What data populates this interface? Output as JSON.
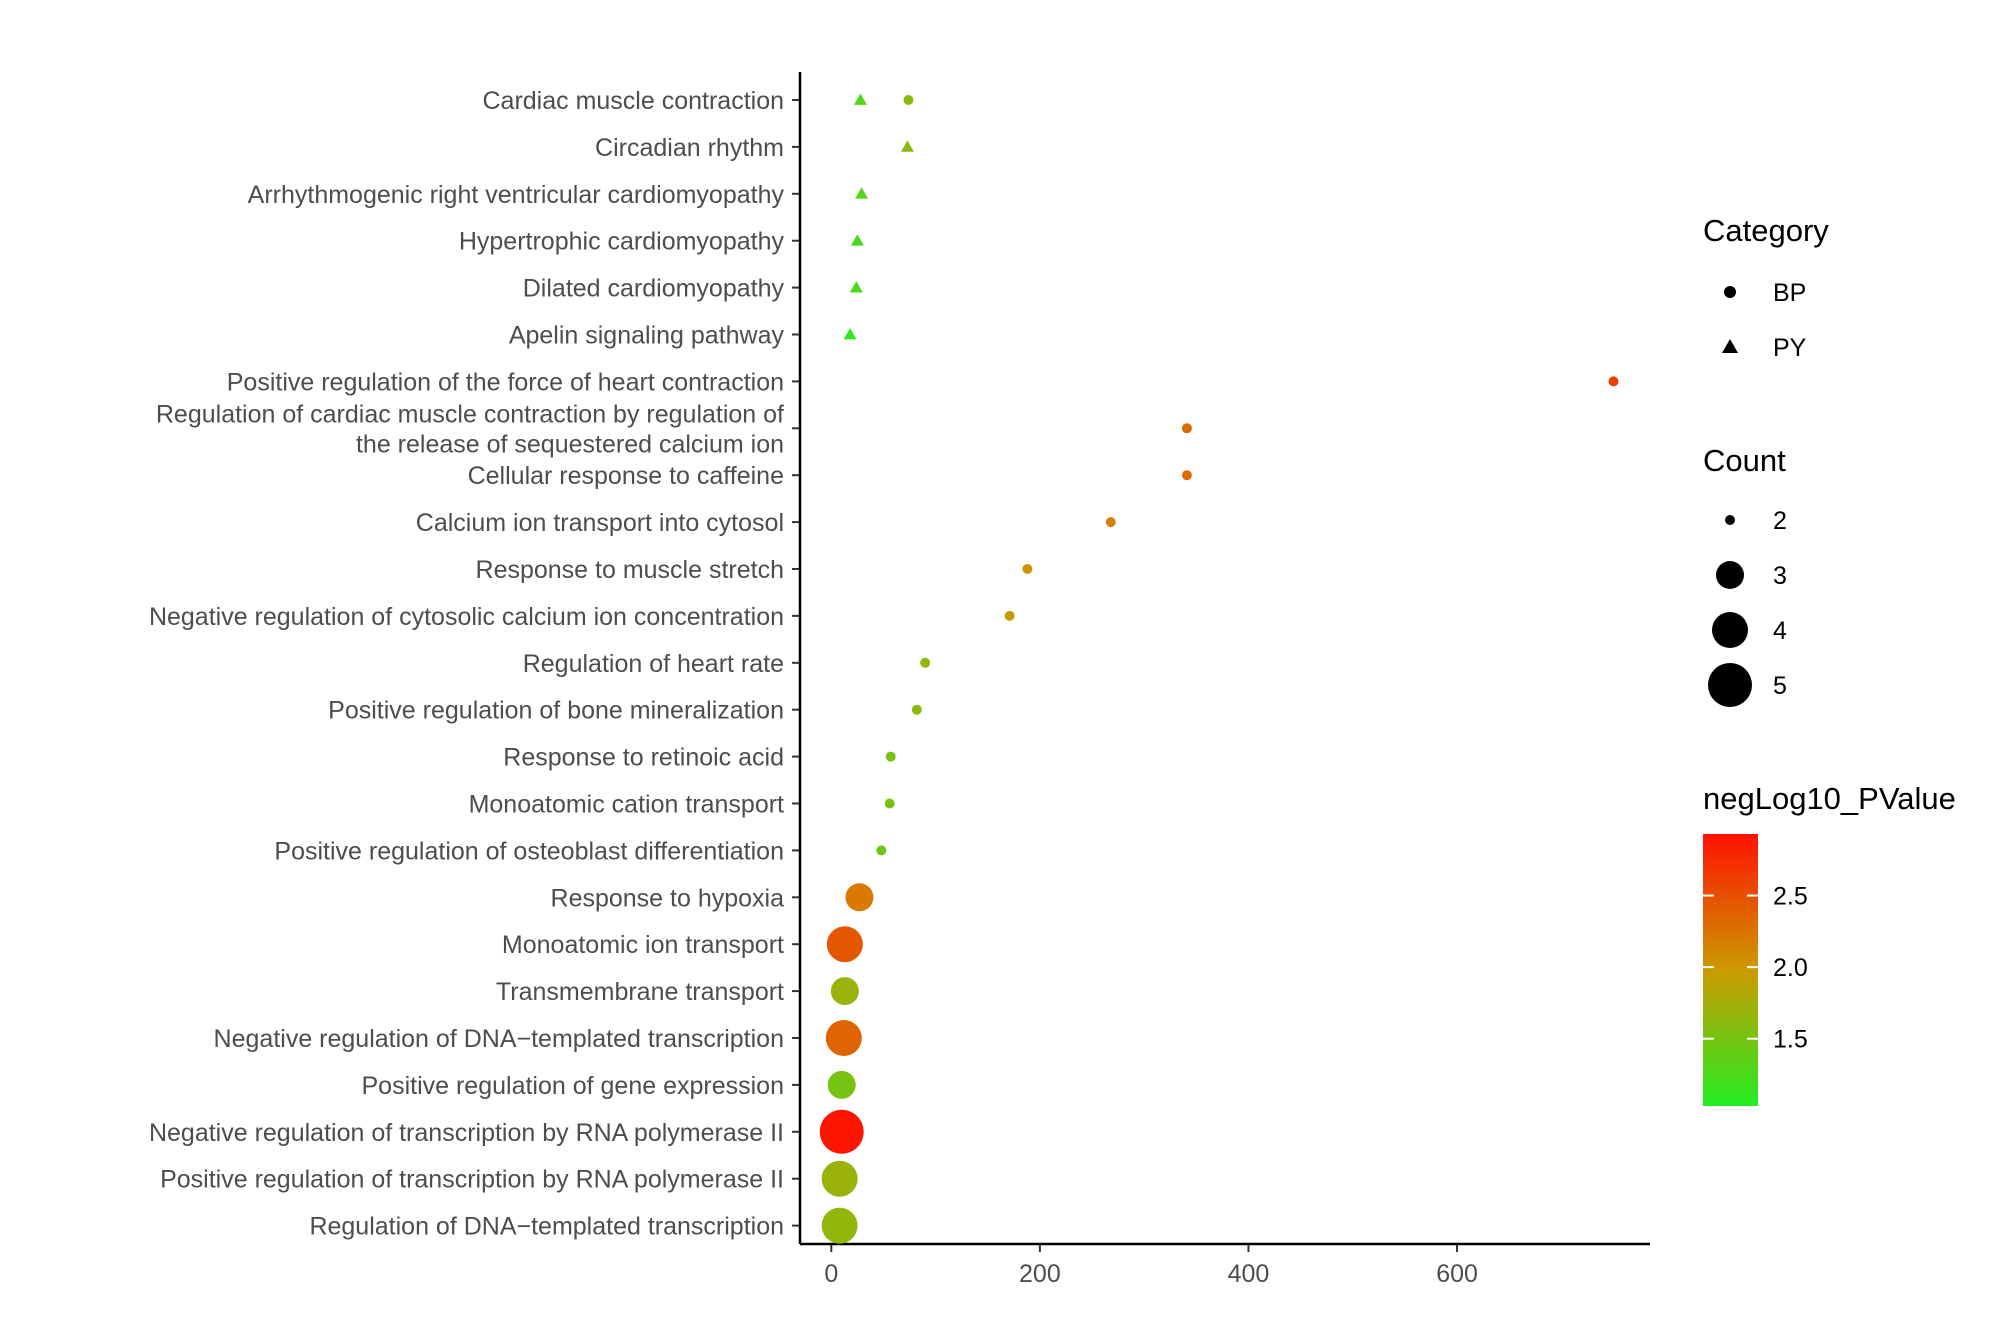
{
  "chart_data": {
    "type": "scatter",
    "title": "",
    "xlabel": "",
    "ylabel": "",
    "xlim": [
      -30,
      785
    ],
    "x_ticks": [
      0,
      200,
      400,
      600
    ],
    "grid": false,
    "categories": [
      "Cardiac muscle contraction",
      "Circadian rhythm",
      "Arrhythmogenic right ventricular cardiomyopathy",
      "Hypertrophic cardiomyopathy",
      "Dilated cardiomyopathy",
      "Apelin signaling pathway",
      "Positive regulation of the force of heart contraction",
      "Regulation of cardiac muscle contraction by regulation of\nthe release of sequestered calcium ion",
      "Cellular response to caffeine",
      "Calcium ion transport into cytosol",
      "Response to muscle stretch",
      "Negative regulation of cytosolic calcium ion concentration",
      "Regulation of heart rate",
      "Positive regulation of bone mineralization",
      "Response to retinoic acid",
      "Monoatomic cation transport",
      "Positive regulation of osteoblast differentiation",
      "Response to hypoxia",
      "Monoatomic ion transport",
      "Transmembrane transport",
      "Negative regulation of DNA−templated transcription",
      "Positive regulation of gene expression",
      "Negative regulation of transcription by RNA polymerase II",
      "Positive regulation of transcription by RNA polymerase II",
      "Regulation of DNA−templated transcription"
    ],
    "points": [
      {
        "term": "Cardiac muscle contraction",
        "x": 28,
        "category": "PY",
        "count": 2,
        "negLog10_PValue": 1.3
      },
      {
        "term": "Cardiac muscle contraction",
        "x": 74,
        "category": "BP",
        "count": 2,
        "negLog10_PValue": 1.6
      },
      {
        "term": "Circadian rhythm",
        "x": 73,
        "category": "PY",
        "count": 2,
        "negLog10_PValue": 1.6
      },
      {
        "term": "Arrhythmogenic right ventricular cardiomyopathy",
        "x": 29,
        "category": "PY",
        "count": 2,
        "negLog10_PValue": 1.3
      },
      {
        "term": "Hypertrophic cardiomyopathy",
        "x": 25,
        "category": "PY",
        "count": 2,
        "negLog10_PValue": 1.25
      },
      {
        "term": "Dilated cardiomyopathy",
        "x": 24,
        "category": "PY",
        "count": 2,
        "negLog10_PValue": 1.25
      },
      {
        "term": "Apelin signaling pathway",
        "x": 18,
        "category": "PY",
        "count": 2,
        "negLog10_PValue": 1.1
      },
      {
        "term": "Positive regulation of the force of heart contraction",
        "x": 750,
        "category": "BP",
        "count": 2,
        "negLog10_PValue": 2.6
      },
      {
        "term": "Regulation of cardiac muscle contraction by regulation of\nthe release of sequestered calcium ion",
        "x": 341,
        "category": "BP",
        "count": 2,
        "negLog10_PValue": 2.3
      },
      {
        "term": "Cellular response to caffeine",
        "x": 341,
        "category": "BP",
        "count": 2,
        "negLog10_PValue": 2.3
      },
      {
        "term": "Calcium ion transport into cytosol",
        "x": 268,
        "category": "BP",
        "count": 2,
        "negLog10_PValue": 2.15
      },
      {
        "term": "Response to muscle stretch",
        "x": 188,
        "category": "BP",
        "count": 2,
        "negLog10_PValue": 2.0
      },
      {
        "term": "Negative regulation of cytosolic calcium ion concentration",
        "x": 171,
        "category": "BP",
        "count": 2,
        "negLog10_PValue": 1.95
      },
      {
        "term": "Regulation of heart rate",
        "x": 90,
        "category": "BP",
        "count": 2,
        "negLog10_PValue": 1.65
      },
      {
        "term": "Positive regulation of bone mineralization",
        "x": 82,
        "category": "BP",
        "count": 2,
        "negLog10_PValue": 1.6
      },
      {
        "term": "Response to retinoic acid",
        "x": 57,
        "category": "BP",
        "count": 2,
        "negLog10_PValue": 1.5
      },
      {
        "term": "Monoatomic cation transport",
        "x": 56,
        "category": "BP",
        "count": 2,
        "negLog10_PValue": 1.5
      },
      {
        "term": "Positive regulation of osteoblast differentiation",
        "x": 48,
        "category": "BP",
        "count": 2,
        "negLog10_PValue": 1.45
      },
      {
        "term": "Response to hypoxia",
        "x": 27,
        "category": "BP",
        "count": 3,
        "negLog10_PValue": 2.2
      },
      {
        "term": "Monoatomic ion transport",
        "x": 13,
        "category": "BP",
        "count": 4,
        "negLog10_PValue": 2.45
      },
      {
        "term": "Transmembrane transport",
        "x": 13,
        "category": "BP",
        "count": 3,
        "negLog10_PValue": 1.7
      },
      {
        "term": "Negative regulation of DNA−templated transcription",
        "x": 12,
        "category": "BP",
        "count": 4,
        "negLog10_PValue": 2.35
      },
      {
        "term": "Positive regulation of gene expression",
        "x": 10,
        "category": "BP",
        "count": 3,
        "negLog10_PValue": 1.5
      },
      {
        "term": "Negative regulation of transcription by RNA polymerase II",
        "x": 10,
        "category": "BP",
        "count": 5,
        "negLog10_PValue": 2.9
      },
      {
        "term": "Positive regulation of transcription by RNA polymerase II",
        "x": 8,
        "category": "BP",
        "count": 4,
        "negLog10_PValue": 1.7
      },
      {
        "term": "Regulation of DNA−templated transcription",
        "x": 8,
        "category": "BP",
        "count": 4,
        "negLog10_PValue": 1.65
      }
    ],
    "legend": {
      "placement": "right",
      "shape_title": "Category",
      "shape_entries": [
        {
          "label": "BP",
          "shape": "circle"
        },
        {
          "label": "PY",
          "shape": "triangle"
        }
      ],
      "size_title": "Count",
      "size_entries": [
        {
          "label": "2",
          "value": 2
        },
        {
          "label": "3",
          "value": 3
        },
        {
          "label": "4",
          "value": 4
        },
        {
          "label": "5",
          "value": 5
        }
      ],
      "color_title": "negLog10_PValue",
      "color_range": [
        1.03,
        2.93
      ],
      "color_ticks": [
        {
          "label": "1.5",
          "value": 1.5
        },
        {
          "label": "2.0",
          "value": 2.0
        },
        {
          "label": "2.5",
          "value": 2.5
        }
      ],
      "color_low": "#22ee22",
      "color_mid": "#cc9900",
      "color_high": "#ff1100"
    }
  }
}
